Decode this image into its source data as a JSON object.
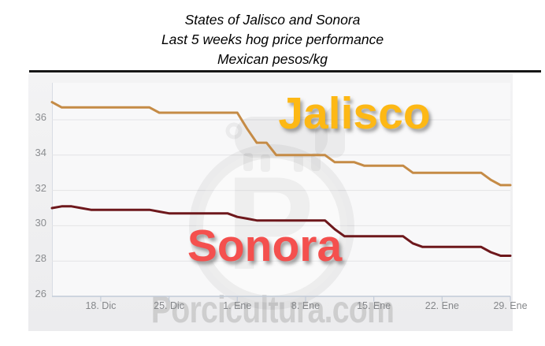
{
  "title": {
    "line1": "States of Jalisco and Sonora",
    "line2": "Last 5 weeks hog price performance",
    "line3": "Mexican pesos/kg"
  },
  "series_labels": {
    "jalisco": "Jalisco",
    "sonora": "Sonora"
  },
  "watermark": {
    "text": "Porcicultura.com",
    "logo": "pig-in-circle-logo"
  },
  "colors": {
    "jalisco_line": "#C58B46",
    "sonora_line": "#6E181C",
    "jalisco_label": "#FDB815",
    "sonora_label": "#F4504E",
    "grid": "#e3e3e6",
    "axis": "#c2cbd8",
    "tick_text": "#8b8d90",
    "title_text": "#000000",
    "watermark_gray": "#8e8e8e"
  },
  "chart_data": {
    "type": "line",
    "title": "States of Jalisco and Sonora — Last 5 weeks hog price performance (Mexican pesos/kg)",
    "ylabel": "Mexican pesos/kg",
    "y_ticks": [
      26,
      28,
      30,
      32,
      34,
      36
    ],
    "ylim": [
      26,
      38.1
    ],
    "grid": "horizontal",
    "legend": "inline-labels",
    "frequency": "daily",
    "x_tick_labels": [
      "18. Dic",
      "25. Dic",
      "1. Ene",
      "8. Ene",
      "15. Ene",
      "22. Ene",
      "29. Ene"
    ],
    "x_tick_indices": [
      5,
      12,
      19,
      26,
      33,
      40,
      47
    ],
    "series": [
      {
        "name": "Jalisco",
        "color": "#C58B46",
        "values": [
          37.0,
          36.7,
          36.7,
          36.7,
          36.7,
          36.7,
          36.7,
          36.7,
          36.7,
          36.7,
          36.7,
          36.4,
          36.4,
          36.4,
          36.4,
          36.4,
          36.4,
          36.4,
          36.4,
          36.4,
          35.5,
          34.7,
          34.7,
          34.0,
          34.0,
          34.0,
          34.0,
          34.0,
          34.0,
          33.6,
          33.6,
          33.6,
          33.4,
          33.4,
          33.4,
          33.4,
          33.4,
          33.0,
          33.0,
          33.0,
          33.0,
          33.0,
          33.0,
          33.0,
          33.0,
          32.6,
          32.3,
          32.3
        ]
      },
      {
        "name": "Sonora",
        "color": "#6E181C",
        "values": [
          31.0,
          31.1,
          31.1,
          31.0,
          30.9,
          30.9,
          30.9,
          30.9,
          30.9,
          30.9,
          30.9,
          30.8,
          30.7,
          30.7,
          30.7,
          30.7,
          30.7,
          30.7,
          30.7,
          30.5,
          30.4,
          30.3,
          30.3,
          30.3,
          30.3,
          30.3,
          30.3,
          30.3,
          30.3,
          29.8,
          29.4,
          29.4,
          29.4,
          29.4,
          29.4,
          29.4,
          29.4,
          29.0,
          28.8,
          28.8,
          28.8,
          28.8,
          28.8,
          28.8,
          28.8,
          28.5,
          28.3,
          28.3
        ]
      }
    ]
  }
}
